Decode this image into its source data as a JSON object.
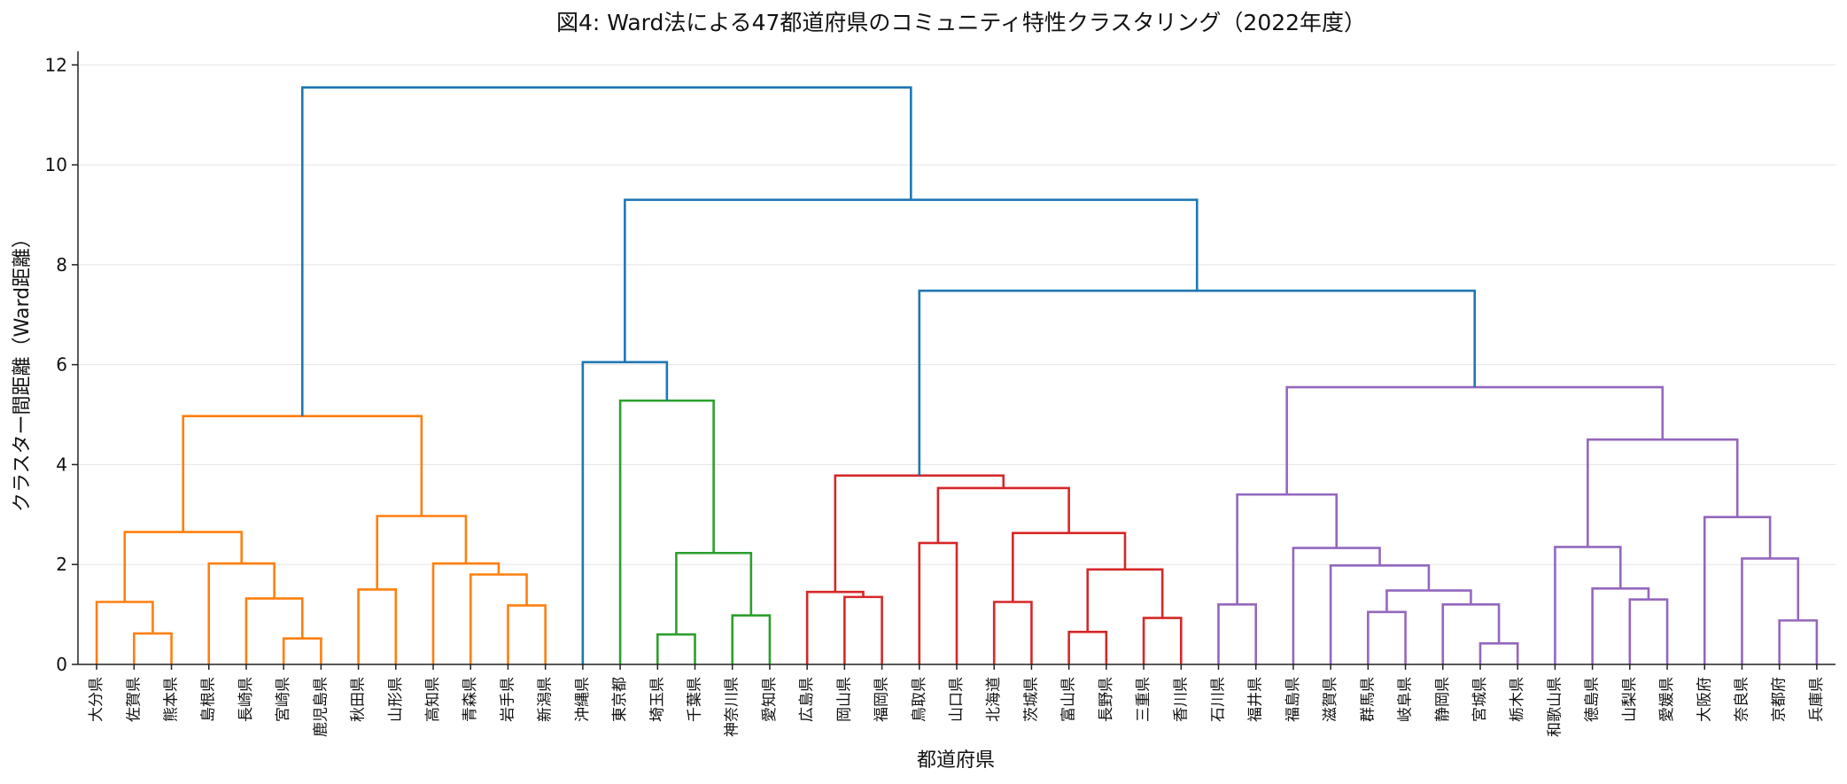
{
  "chart_data": {
    "type": "dendrogram",
    "title": "図4: Ward法による47都道府県のコミュニティ特性クラスタリング（2022年度）",
    "xlabel": "都道府県",
    "ylabel": "クラスター間距離（Ward距離）",
    "ylim": [
      0,
      12.2
    ],
    "yticks": [
      0,
      2,
      4,
      6,
      8,
      10,
      12
    ],
    "grid": true,
    "leaves": [
      "大分県",
      "佐賀県",
      "熊本県",
      "島根県",
      "長崎県",
      "宮崎県",
      "鹿児島県",
      "秋田県",
      "山形県",
      "高知県",
      "青森県",
      "岩手県",
      "新潟県",
      "沖縄県",
      "東京都",
      "埼玉県",
      "千葉県",
      "神奈川県",
      "愛知県",
      "広島県",
      "岡山県",
      "福岡県",
      "鳥取県",
      "山口県",
      "北海道",
      "茨城県",
      "富山県",
      "長野県",
      "三重県",
      "香川県",
      "石川県",
      "福井県",
      "福島県",
      "滋賀県",
      "群馬県",
      "岐阜県",
      "静岡県",
      "宮城県",
      "栃木県",
      "和歌山県",
      "徳島県",
      "山梨県",
      "愛媛県",
      "大阪府",
      "奈良県",
      "京都府",
      "兵庫県"
    ],
    "colors": {
      "orange": "#ff7f0e",
      "green": "#2ca02c",
      "red": "#d62728",
      "purple": "#9467bd",
      "above": "#1f77b4"
    },
    "merges": [
      {
        "id": "o1",
        "a": 1,
        "b": 2,
        "h": 0.62,
        "c": "orange"
      },
      {
        "id": "o2",
        "a": 0,
        "b": "o1",
        "h": 1.25,
        "c": "orange"
      },
      {
        "id": "o3",
        "a": 5,
        "b": 6,
        "h": 0.52,
        "c": "orange"
      },
      {
        "id": "o4",
        "a": 4,
        "b": "o3",
        "h": 1.32,
        "c": "orange"
      },
      {
        "id": "o5",
        "a": 3,
        "b": "o4",
        "h": 2.02,
        "c": "orange"
      },
      {
        "id": "o6",
        "a": "o2",
        "b": "o5",
        "h": 2.65,
        "c": "orange"
      },
      {
        "id": "o7",
        "a": 7,
        "b": 8,
        "h": 1.5,
        "c": "orange"
      },
      {
        "id": "o8",
        "a": 11,
        "b": 12,
        "h": 1.18,
        "c": "orange"
      },
      {
        "id": "o9",
        "a": 10,
        "b": "o8",
        "h": 1.8,
        "c": "orange"
      },
      {
        "id": "o10",
        "a": 9,
        "b": "o9",
        "h": 2.02,
        "c": "orange"
      },
      {
        "id": "o11",
        "a": "o7",
        "b": "o10",
        "h": 2.97,
        "c": "orange"
      },
      {
        "id": "o12",
        "a": "o6",
        "b": "o11",
        "h": 4.97,
        "c": "orange"
      },
      {
        "id": "g1",
        "a": 15,
        "b": 16,
        "h": 0.6,
        "c": "green"
      },
      {
        "id": "g2",
        "a": 17,
        "b": 18,
        "h": 0.98,
        "c": "green"
      },
      {
        "id": "g3",
        "a": "g1",
        "b": "g2",
        "h": 2.23,
        "c": "green"
      },
      {
        "id": "g4",
        "a": 14,
        "b": "g3",
        "h": 5.28,
        "c": "green"
      },
      {
        "id": "b1",
        "a": 13,
        "b": "g4",
        "h": 6.05,
        "c": "above"
      },
      {
        "id": "r1",
        "a": 20,
        "b": 21,
        "h": 1.35,
        "c": "red"
      },
      {
        "id": "r2",
        "a": 19,
        "b": "r1",
        "h": 1.45,
        "c": "red"
      },
      {
        "id": "r3",
        "a": 22,
        "b": 23,
        "h": 2.43,
        "c": "red"
      },
      {
        "id": "r4",
        "a": 24,
        "b": 25,
        "h": 1.25,
        "c": "red"
      },
      {
        "id": "r5",
        "a": 26,
        "b": 27,
        "h": 0.65,
        "c": "red"
      },
      {
        "id": "r6",
        "a": 28,
        "b": 29,
        "h": 0.93,
        "c": "red"
      },
      {
        "id": "r7",
        "a": "r5",
        "b": "r6",
        "h": 1.9,
        "c": "red"
      },
      {
        "id": "r8",
        "a": "r4",
        "b": "r7",
        "h": 2.63,
        "c": "red"
      },
      {
        "id": "r9",
        "a": "r3",
        "b": "r8",
        "h": 3.53,
        "c": "red"
      },
      {
        "id": "r10",
        "a": "r2",
        "b": "r9",
        "h": 3.78,
        "c": "red"
      },
      {
        "id": "p1",
        "a": 30,
        "b": 31,
        "h": 1.2,
        "c": "purple"
      },
      {
        "id": "p2",
        "a": 34,
        "b": 35,
        "h": 1.05,
        "c": "purple"
      },
      {
        "id": "p3",
        "a": 37,
        "b": 38,
        "h": 0.42,
        "c": "purple"
      },
      {
        "id": "p4",
        "a": 36,
        "b": "p3",
        "h": 1.2,
        "c": "purple"
      },
      {
        "id": "p5",
        "a": "p2",
        "b": "p4",
        "h": 1.48,
        "c": "purple"
      },
      {
        "id": "p6",
        "a": 33,
        "b": "p5",
        "h": 1.98,
        "c": "purple"
      },
      {
        "id": "p7",
        "a": 32,
        "b": "p6",
        "h": 2.33,
        "c": "purple"
      },
      {
        "id": "p8",
        "a": "p1",
        "b": "p7",
        "h": 3.4,
        "c": "purple"
      },
      {
        "id": "p9",
        "a": 41,
        "b": 42,
        "h": 1.3,
        "c": "purple"
      },
      {
        "id": "p10",
        "a": 40,
        "b": "p9",
        "h": 1.52,
        "c": "purple"
      },
      {
        "id": "p11",
        "a": 39,
        "b": "p10",
        "h": 2.35,
        "c": "purple"
      },
      {
        "id": "p12",
        "a": 45,
        "b": 46,
        "h": 0.88,
        "c": "purple"
      },
      {
        "id": "p13",
        "a": 44,
        "b": "p12",
        "h": 2.12,
        "c": "purple"
      },
      {
        "id": "p14",
        "a": 43,
        "b": "p13",
        "h": 2.95,
        "c": "purple"
      },
      {
        "id": "p15",
        "a": "p11",
        "b": "p14",
        "h": 4.5,
        "c": "purple"
      },
      {
        "id": "p16",
        "a": "p8",
        "b": "p15",
        "h": 5.55,
        "c": "purple"
      },
      {
        "id": "b2",
        "a": "r10",
        "b": "p16",
        "h": 7.48,
        "c": "above"
      },
      {
        "id": "b3",
        "a": "b1",
        "b": "b2",
        "h": 9.3,
        "c": "above"
      },
      {
        "id": "b4",
        "a": "o12",
        "b": "b3",
        "h": 11.55,
        "c": "above"
      }
    ]
  }
}
